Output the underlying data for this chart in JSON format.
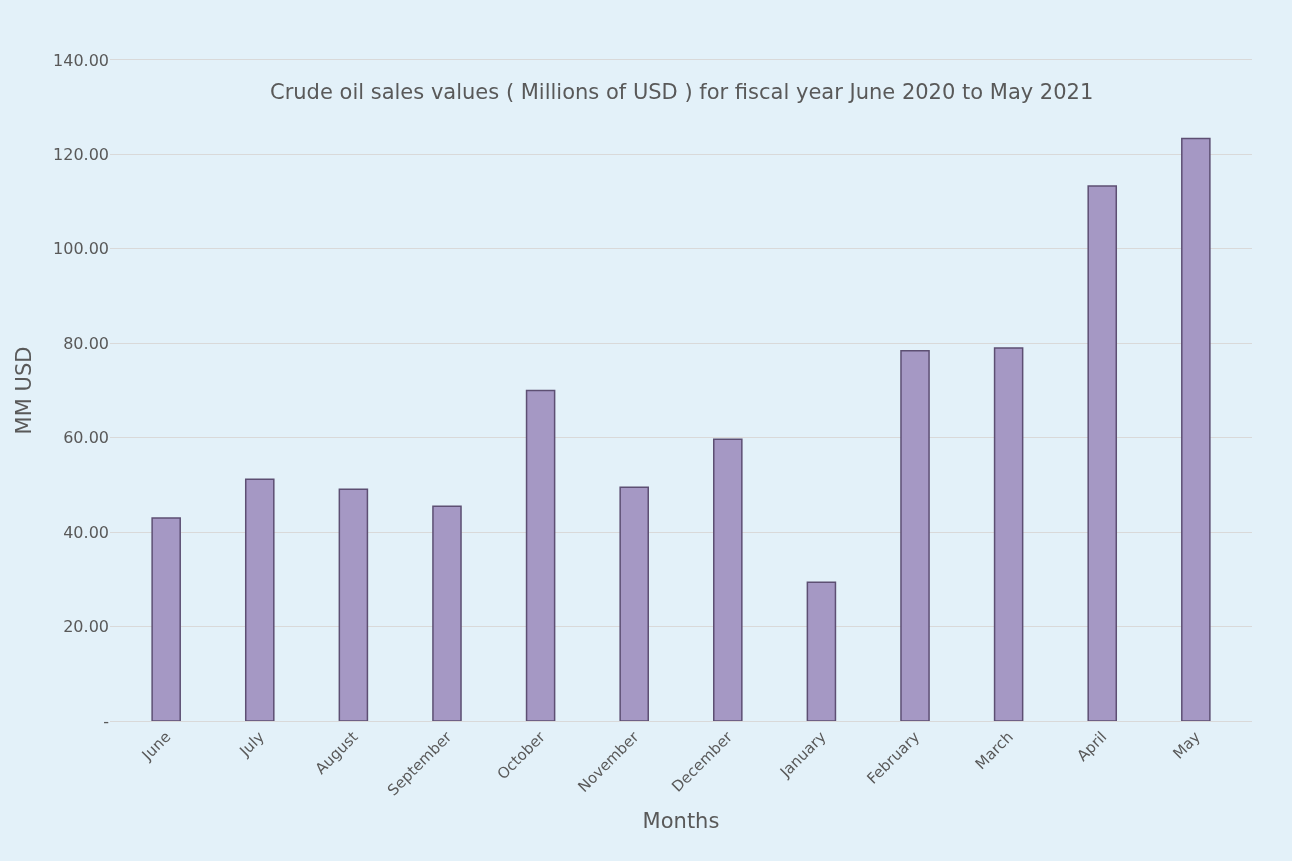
{
  "chart_data": {
    "type": "bar",
    "title": "Crude oil sales values ( Millions of USD ) for fiscal year June 2020 to May 2021",
    "xlabel": "Months",
    "ylabel": "MM USD",
    "categories": [
      "June",
      "July",
      "August",
      "September",
      "October",
      "November",
      "December",
      "January",
      "February",
      "March",
      "April",
      "May"
    ],
    "values": [
      43.0,
      51.2,
      49.1,
      45.5,
      70.0,
      49.5,
      59.7,
      29.4,
      78.4,
      79.0,
      113.3,
      123.4
    ],
    "color": "#a598c4",
    "ylim": [
      0,
      140
    ],
    "yticks": [
      {
        "value": 0,
        "label": "-"
      },
      {
        "value": 20,
        "label": "20.00"
      },
      {
        "value": 40,
        "label": "40.00"
      },
      {
        "value": 60,
        "label": "60.00"
      },
      {
        "value": 80,
        "label": "80.00"
      },
      {
        "value": 100,
        "label": "100.00"
      },
      {
        "value": 120,
        "label": "120.00"
      },
      {
        "value": 140,
        "label": "140.00"
      }
    ],
    "grid": "y"
  }
}
